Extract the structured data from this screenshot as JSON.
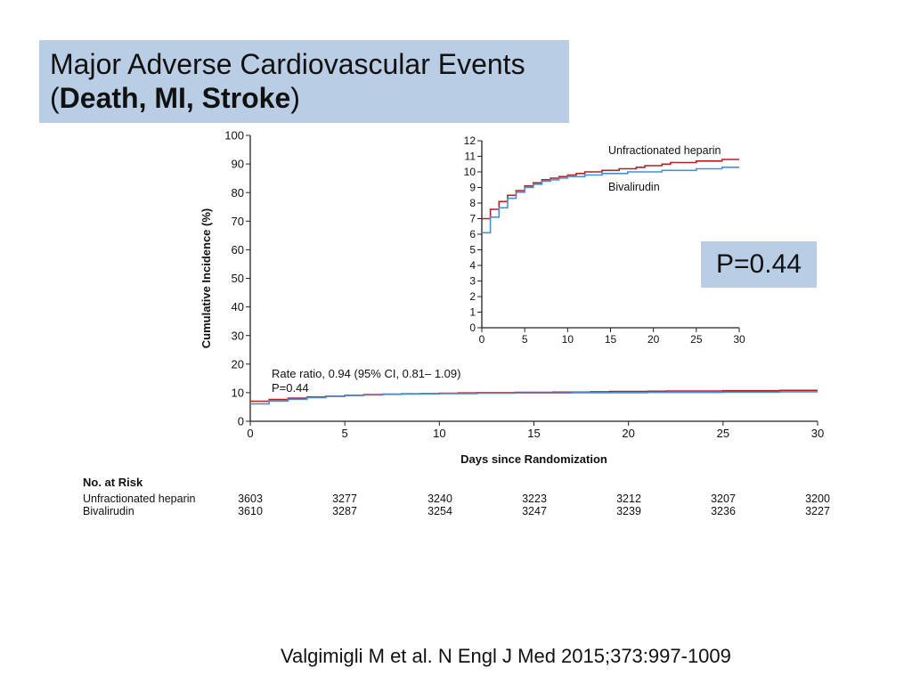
{
  "title": {
    "line1": "Major Adverse Cardiovascular Events",
    "open_paren": "(",
    "bold": "Death, MI, Stroke",
    "close_paren": ")"
  },
  "p_value_box": "P=0.44",
  "citation": "Valgimigli M et al. N Engl J Med 2015;373:997-1009",
  "colors": {
    "heparin": "#b22222",
    "bivalirudin": "#4a8fd4",
    "title_bg": "#b9cde5"
  },
  "chart_data": [
    {
      "type": "line",
      "title": "",
      "xlabel": "Days since Randomization",
      "ylabel": "Cumulative Incidence (%)",
      "xlim": [
        0,
        30
      ],
      "ylim": [
        0,
        100
      ],
      "x_ticks": [
        0,
        5,
        10,
        15,
        20,
        25,
        30
      ],
      "y_ticks": [
        0,
        10,
        20,
        30,
        40,
        50,
        60,
        70,
        80,
        90,
        100
      ],
      "annotation_line1": "Rate ratio, 0.94 (95% CI, 0.81– 1.09)",
      "annotation_line2": "P=0.44",
      "series": [
        {
          "name": "Unfractionated heparin",
          "x": [
            0,
            1,
            2,
            3,
            4,
            5,
            6,
            7,
            8,
            9,
            10,
            11,
            12,
            13,
            14,
            15,
            16,
            17,
            18,
            19,
            20,
            21,
            22,
            23,
            24,
            25,
            26,
            27,
            28,
            29,
            30
          ],
          "y": [
            7.0,
            7.6,
            8.1,
            8.5,
            8.8,
            9.1,
            9.3,
            9.5,
            9.6,
            9.7,
            9.8,
            9.9,
            10.0,
            10.0,
            10.1,
            10.1,
            10.2,
            10.2,
            10.3,
            10.4,
            10.4,
            10.5,
            10.6,
            10.6,
            10.6,
            10.7,
            10.7,
            10.7,
            10.8,
            10.8,
            10.8
          ]
        },
        {
          "name": "Bivalirudin",
          "x": [
            0,
            1,
            2,
            3,
            4,
            5,
            6,
            7,
            8,
            9,
            10,
            11,
            12,
            13,
            14,
            15,
            16,
            17,
            18,
            19,
            20,
            21,
            22,
            23,
            24,
            25,
            26,
            27,
            28,
            29,
            30
          ],
          "y": [
            6.1,
            7.1,
            7.7,
            8.3,
            8.7,
            9.0,
            9.2,
            9.4,
            9.5,
            9.6,
            9.7,
            9.7,
            9.8,
            9.8,
            9.9,
            9.9,
            9.9,
            10.0,
            10.0,
            10.0,
            10.0,
            10.1,
            10.1,
            10.1,
            10.1,
            10.2,
            10.2,
            10.2,
            10.3,
            10.3,
            10.3
          ]
        }
      ],
      "risk_table": {
        "header": "No. at Risk",
        "rows": [
          {
            "label": "Unfractionated heparin",
            "values": [
              "3603",
              "3277",
              "3240",
              "3223",
              "3212",
              "3207",
              "3200"
            ]
          },
          {
            "label": "Bivalirudin",
            "values": [
              "3610",
              "3287",
              "3254",
              "3247",
              "3239",
              "3236",
              "3227"
            ]
          }
        ]
      }
    },
    {
      "type": "line",
      "title": "",
      "xlim": [
        0,
        30
      ],
      "ylim": [
        0,
        12
      ],
      "x_ticks": [
        0,
        5,
        10,
        15,
        20,
        25,
        30
      ],
      "y_ticks": [
        0,
        1,
        2,
        3,
        4,
        5,
        6,
        7,
        8,
        9,
        10,
        11,
        12
      ],
      "series": [
        {
          "name": "Unfractionated heparin",
          "x": [
            0,
            1,
            2,
            3,
            4,
            5,
            6,
            7,
            8,
            9,
            10,
            11,
            12,
            13,
            14,
            15,
            16,
            17,
            18,
            19,
            20,
            21,
            22,
            23,
            24,
            25,
            26,
            27,
            28,
            29,
            30
          ],
          "y": [
            7.0,
            7.6,
            8.1,
            8.5,
            8.8,
            9.1,
            9.3,
            9.5,
            9.6,
            9.7,
            9.8,
            9.9,
            10.0,
            10.0,
            10.1,
            10.1,
            10.2,
            10.2,
            10.3,
            10.4,
            10.4,
            10.5,
            10.6,
            10.6,
            10.6,
            10.7,
            10.7,
            10.7,
            10.8,
            10.8,
            10.8
          ]
        },
        {
          "name": "Bivalirudin",
          "x": [
            0,
            1,
            2,
            3,
            4,
            5,
            6,
            7,
            8,
            9,
            10,
            11,
            12,
            13,
            14,
            15,
            16,
            17,
            18,
            19,
            20,
            21,
            22,
            23,
            24,
            25,
            26,
            27,
            28,
            29,
            30
          ],
          "y": [
            6.1,
            7.1,
            7.7,
            8.3,
            8.7,
            9.0,
            9.2,
            9.4,
            9.5,
            9.6,
            9.7,
            9.7,
            9.8,
            9.8,
            9.9,
            9.9,
            9.9,
            10.0,
            10.0,
            10.0,
            10.0,
            10.1,
            10.1,
            10.1,
            10.1,
            10.2,
            10.2,
            10.2,
            10.3,
            10.3,
            10.3
          ]
        }
      ]
    }
  ]
}
